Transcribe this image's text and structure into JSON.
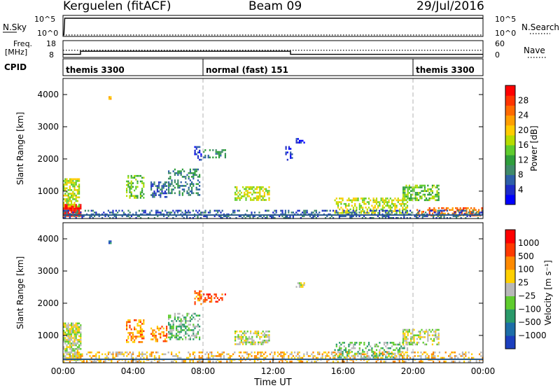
{
  "header": {
    "station": "Kerguelen (fitACF)",
    "beam": "Beam 09",
    "date": "29/Jul/2016"
  },
  "labels": {
    "nsky": "N.Sky",
    "nsearch": "N.Search",
    "freq_line1": "Freq.",
    "freq_line2": "[MHz]",
    "nave": "Nave",
    "cpid": "CPID",
    "time_axis": "Time UT",
    "slant_range": "Slant Range [km]",
    "power_label": "Power [dB]",
    "velocity_label": "Velocity [m s⁻¹]"
  },
  "colors": {
    "power": [
      "#0000ff",
      "#1e2cc8",
      "#2e5fa8",
      "#3f8a6a",
      "#2f9e3c",
      "#5fcc2e",
      "#b7dc00",
      "#ffcc00",
      "#ff9f00",
      "#ff6a00",
      "#ff3400",
      "#ff0000"
    ],
    "velocity": [
      "#1c3fbe",
      "#1d6ea8",
      "#2a9a6a",
      "#5fcc2e",
      "#b8b8b8",
      "#ffd000",
      "#ff8a00",
      "#ff3a00",
      "#ff0000"
    ]
  },
  "chart_data": [
    {
      "panel": "nsky-nsearch",
      "type": "line",
      "yticks_left": [
        "10^5",
        "10^0"
      ],
      "yticks_right": [
        "10^5",
        "10^0"
      ],
      "series": [
        {
          "name": "N.Sky",
          "x": [
            0.0,
            0.05,
            0.1,
            24.0
          ],
          "y": [
            1,
            1,
            100000,
            100000
          ]
        },
        {
          "name": "N.Search",
          "x": [
            0.0,
            24.0
          ],
          "y": [
            1,
            1
          ]
        }
      ]
    },
    {
      "panel": "freq-nave",
      "type": "line",
      "yticks_left": [
        "18",
        "8"
      ],
      "yticks_right": [
        "60",
        "0"
      ],
      "series": [
        {
          "name": "Freq.",
          "x": [
            0.0,
            1.0,
            1.0,
            13.0,
            13.0,
            24.0
          ],
          "y": [
            10,
            10,
            12,
            12,
            10,
            10
          ]
        },
        {
          "name": "Nave",
          "x": [
            0.0,
            24.0
          ],
          "y": [
            28,
            28
          ]
        }
      ]
    },
    {
      "panel": "cpid",
      "type": "table",
      "segments": [
        {
          "start": 0.0,
          "end": 8.0,
          "label": "themis 3300"
        },
        {
          "start": 8.0,
          "end": 20.0,
          "label": "normal (fast) 151"
        },
        {
          "start": 20.0,
          "end": 24.0,
          "label": "themis 3300"
        }
      ]
    },
    {
      "panel": "power",
      "type": "heatmap",
      "xlim": [
        0,
        24
      ],
      "ylim": [
        150,
        4500
      ],
      "yticks": [
        1000,
        2000,
        3000,
        4000
      ],
      "xticks": [
        "00:00",
        "04:00",
        "08:00",
        "12:00",
        "16:00",
        "20:00",
        "00:00"
      ],
      "ylabel": "Slant Range [km]",
      "colorbar": {
        "label": "Power [dB]",
        "ticks": [
          "28",
          "24",
          "20",
          "16",
          "12",
          "8",
          "4"
        ]
      },
      "regions": [
        {
          "t0": 0.0,
          "t1": 1.0,
          "r0": 250,
          "r1": 600,
          "level": 11,
          "density": 0.9
        },
        {
          "t0": 0.0,
          "t1": 0.9,
          "r0": 550,
          "r1": 1400,
          "level": 6,
          "density": 0.7
        },
        {
          "t0": 2.6,
          "t1": 2.75,
          "r0": 3850,
          "r1": 3950,
          "level": 8,
          "density": 1.0
        },
        {
          "t0": 3.6,
          "t1": 4.6,
          "r0": 800,
          "r1": 1500,
          "level": 5,
          "density": 0.5
        },
        {
          "t0": 5.0,
          "t1": 5.9,
          "r0": 800,
          "r1": 1300,
          "level": 2,
          "density": 0.5
        },
        {
          "t0": 6.0,
          "t1": 7.8,
          "r0": 900,
          "r1": 1700,
          "level": 3,
          "density": 0.45
        },
        {
          "t0": 7.5,
          "t1": 7.9,
          "r0": 2000,
          "r1": 2400,
          "level": 1,
          "density": 0.45
        },
        {
          "t0": 8.0,
          "t1": 9.3,
          "r0": 2050,
          "r1": 2300,
          "level": 3,
          "density": 0.45
        },
        {
          "t0": 9.8,
          "t1": 11.8,
          "r0": 750,
          "r1": 1150,
          "level": 6,
          "density": 0.55
        },
        {
          "t0": 12.7,
          "t1": 13.1,
          "r0": 2000,
          "r1": 2400,
          "level": 1,
          "density": 0.35
        },
        {
          "t0": 13.3,
          "t1": 13.8,
          "r0": 2500,
          "r1": 2650,
          "level": 1,
          "density": 0.6
        },
        {
          "t0": 15.5,
          "t1": 19.7,
          "r0": 300,
          "r1": 800,
          "level": 6,
          "density": 0.5
        },
        {
          "t0": 19.4,
          "t1": 21.5,
          "r0": 700,
          "r1": 1200,
          "level": 5,
          "density": 0.55
        },
        {
          "t0": 20.2,
          "t1": 23.9,
          "r0": 250,
          "r1": 500,
          "level": 9,
          "density": 0.55
        },
        {
          "t0": 0.0,
          "t1": 24.0,
          "r0": 180,
          "r1": 420,
          "level": 2,
          "density": 0.35
        }
      ]
    },
    {
      "panel": "velocity",
      "type": "heatmap",
      "xlim": [
        0,
        24
      ],
      "ylim": [
        150,
        4500
      ],
      "yticks": [
        1000,
        2000,
        3000,
        4000
      ],
      "xticks": [
        "00:00",
        "04:00",
        "08:00",
        "12:00",
        "16:00",
        "20:00",
        "00:00"
      ],
      "xlabel": "Time UT",
      "ylabel": "Slant Range [km]",
      "colorbar": {
        "label": "Velocity [m s⁻¹]",
        "ticks": [
          "1000",
          "500",
          "100",
          "25",
          "−25",
          "−100",
          "−500",
          "−1000"
        ]
      },
      "regions": [
        {
          "t0": 0.0,
          "t1": 1.0,
          "r0": 250,
          "r1": 1400,
          "level": 4,
          "density": 0.8
        },
        {
          "t0": 2.6,
          "t1": 2.75,
          "r0": 3850,
          "r1": 3950,
          "level": 1,
          "density": 1.0
        },
        {
          "t0": 3.6,
          "t1": 4.6,
          "r0": 800,
          "r1": 1500,
          "level": 6,
          "density": 0.5
        },
        {
          "t0": 5.0,
          "t1": 5.9,
          "r0": 800,
          "r1": 1300,
          "level": 6,
          "density": 0.45
        },
        {
          "t0": 6.0,
          "t1": 7.8,
          "r0": 900,
          "r1": 1700,
          "level": 3,
          "density": 0.45
        },
        {
          "t0": 7.5,
          "t1": 7.9,
          "r0": 2000,
          "r1": 2400,
          "level": 6,
          "density": 0.45
        },
        {
          "t0": 8.0,
          "t1": 9.3,
          "r0": 2050,
          "r1": 2300,
          "level": 7,
          "density": 0.45
        },
        {
          "t0": 9.8,
          "t1": 11.8,
          "r0": 750,
          "r1": 1150,
          "level": 4,
          "density": 0.55
        },
        {
          "t0": 13.3,
          "t1": 13.8,
          "r0": 2500,
          "r1": 2650,
          "level": 4,
          "density": 0.6
        },
        {
          "t0": 15.5,
          "t1": 19.7,
          "r0": 300,
          "r1": 800,
          "level": 3,
          "density": 0.45
        },
        {
          "t0": 19.4,
          "t1": 21.5,
          "r0": 700,
          "r1": 1200,
          "level": 4,
          "density": 0.55
        },
        {
          "t0": 0.0,
          "t1": 24.0,
          "r0": 180,
          "r1": 500,
          "level": 5,
          "density": 0.35
        }
      ]
    }
  ]
}
